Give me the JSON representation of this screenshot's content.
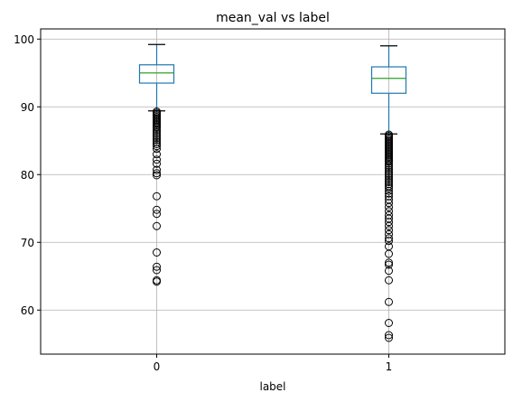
{
  "chart_data": {
    "type": "box",
    "title": "mean_val vs label",
    "xlabel": "label",
    "ylabel": "",
    "ylim": [
      53.5,
      101.5
    ],
    "yticks": [
      60,
      70,
      80,
      90,
      100
    ],
    "categories": [
      "0",
      "1"
    ],
    "grid": true,
    "colors": {
      "box": "#1f77b4",
      "median": "#2ca02c",
      "whisker": "#1f77b4",
      "cap": "#000000",
      "flier": "#000000",
      "grid": "#b0b0b0"
    },
    "boxes": [
      {
        "category": "0",
        "whislo": 89.4,
        "q1": 93.5,
        "median": 95.0,
        "q3": 96.2,
        "whishi": 99.2,
        "fliers": [
          89.3,
          89.1,
          88.9,
          88.7,
          88.5,
          88.3,
          88.1,
          87.9,
          87.7,
          87.5,
          87.3,
          87.1,
          86.9,
          86.6,
          86.3,
          86.0,
          85.7,
          85.4,
          85.1,
          84.8,
          84.5,
          84.2,
          83.8,
          83.0,
          82.2,
          81.6,
          80.7,
          80.2,
          79.9,
          76.8,
          74.8,
          74.2,
          72.4,
          68.5,
          66.4,
          65.9,
          64.4,
          64.2
        ]
      },
      {
        "category": "1",
        "whislo": 86.0,
        "q1": 92.0,
        "median": 94.2,
        "q3": 95.9,
        "whishi": 99.0,
        "fliers": [
          85.9,
          85.7,
          85.5,
          85.3,
          85.1,
          84.9,
          84.7,
          84.5,
          84.3,
          84.1,
          83.9,
          83.7,
          83.5,
          83.3,
          83.1,
          82.9,
          82.7,
          82.5,
          82.3,
          82.1,
          81.9,
          81.6,
          81.3,
          81.0,
          80.7,
          80.4,
          80.1,
          79.8,
          79.5,
          79.2,
          78.9,
          78.6,
          78.3,
          78.0,
          77.6,
          77.2,
          76.8,
          76.3,
          75.8,
          75.2,
          74.6,
          74.0,
          73.5,
          73.0,
          72.4,
          71.8,
          71.2,
          70.6,
          70.2,
          69.4,
          68.3,
          67.0,
          66.7,
          65.8,
          64.4,
          61.2,
          58.1,
          56.3,
          55.9
        ]
      }
    ]
  }
}
